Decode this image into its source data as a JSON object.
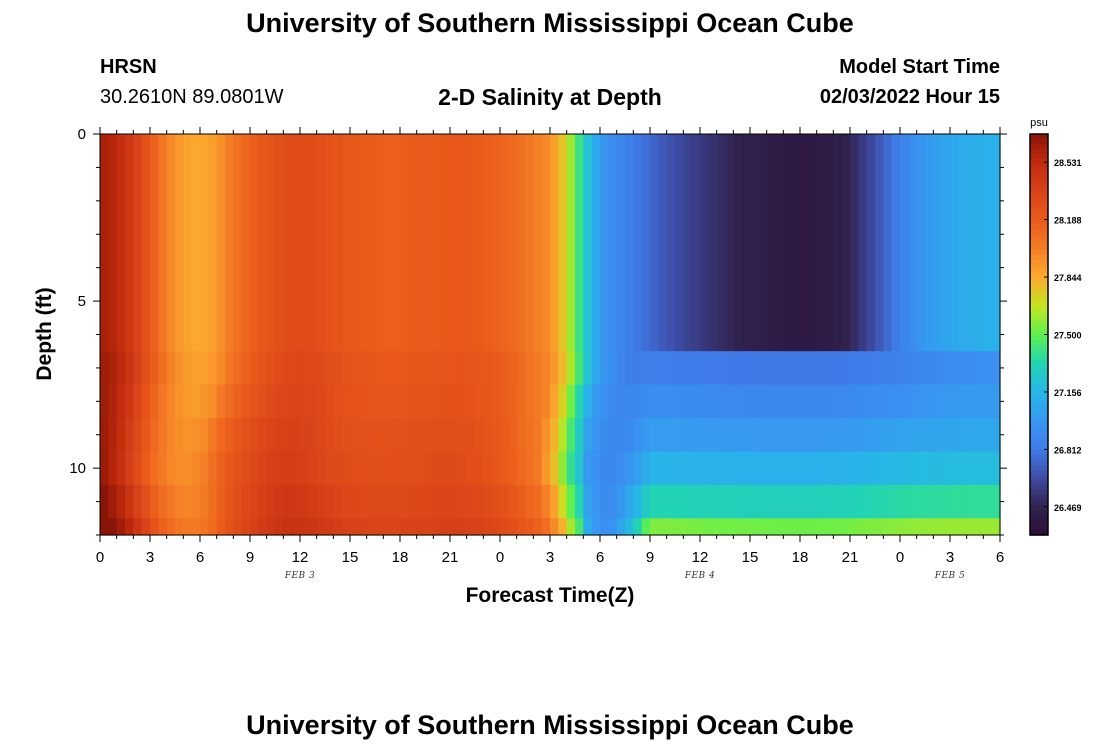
{
  "page": {
    "title": "University of Southern Mississippi Ocean Cube",
    "footer_title": "University of Southern Mississippi Ocean Cube",
    "station": "HRSN",
    "coordinates": "30.2610N  89.0801W",
    "subtitle": "2-D Salinity at Depth",
    "model_start_label": "Model Start Time",
    "model_start_value": "02/03/2022 Hour 15"
  },
  "chart_data": {
    "type": "heatmap",
    "title": "2-D Salinity at Depth",
    "xlabel": "Forecast Time(Z)",
    "ylabel": "Depth (ft)",
    "x_tick_labels": [
      "0",
      "3",
      "6",
      "9",
      "12",
      "15",
      "18",
      "21",
      "0",
      "3",
      "6",
      "9",
      "12",
      "15",
      "18",
      "21",
      "0",
      "3",
      "6"
    ],
    "x_range_hours": [
      0,
      54
    ],
    "date_labels": [
      {
        "label": "FEB 3",
        "hour": 12
      },
      {
        "label": "FEB 4",
        "hour": 36
      },
      {
        "label": "FEB 5",
        "hour": 51
      }
    ],
    "y_ticks": [
      0,
      5,
      10
    ],
    "y_range_ft": [
      0,
      12
    ],
    "depth_layers_ft": [
      [
        0,
        6.5
      ],
      [
        6.5,
        7.5
      ],
      [
        7.5,
        8.5
      ],
      [
        8.5,
        9.5
      ],
      [
        9.5,
        10.5
      ],
      [
        10.5,
        11.5
      ],
      [
        11.5,
        12
      ]
    ],
    "surface_profile_psu": [
      [
        0,
        28.62
      ],
      [
        1,
        28.55
      ],
      [
        2,
        28.4
      ],
      [
        3,
        28.2
      ],
      [
        4,
        28.0
      ],
      [
        5,
        27.88
      ],
      [
        6,
        27.84
      ],
      [
        7,
        27.9
      ],
      [
        8,
        28.05
      ],
      [
        9,
        28.15
      ],
      [
        10,
        28.22
      ],
      [
        11,
        28.28
      ],
      [
        12,
        28.3
      ],
      [
        13,
        28.28
      ],
      [
        14,
        28.24
      ],
      [
        15,
        28.2
      ],
      [
        16,
        28.18
      ],
      [
        17,
        28.17
      ],
      [
        18,
        28.17
      ],
      [
        19,
        28.18
      ],
      [
        20,
        28.18
      ],
      [
        21,
        28.2
      ],
      [
        22,
        28.2
      ],
      [
        23,
        28.18
      ],
      [
        24,
        28.15
      ],
      [
        25,
        28.1
      ],
      [
        26,
        28.02
      ],
      [
        27,
        27.95
      ],
      [
        28,
        27.7
      ],
      [
        28.5,
        27.5
      ],
      [
        29,
        27.3
      ],
      [
        30,
        27.0
      ],
      [
        31,
        26.9
      ],
      [
        32,
        26.82
      ],
      [
        33,
        26.75
      ],
      [
        34,
        26.68
      ],
      [
        35,
        26.62
      ],
      [
        36,
        26.57
      ],
      [
        37,
        26.52
      ],
      [
        38,
        26.48
      ],
      [
        39,
        26.44
      ],
      [
        40,
        26.42
      ],
      [
        41,
        26.4
      ],
      [
        42,
        26.39
      ],
      [
        43,
        26.4
      ],
      [
        44,
        26.42
      ],
      [
        45,
        26.48
      ],
      [
        46,
        26.6
      ],
      [
        47,
        26.72
      ],
      [
        48,
        26.85
      ],
      [
        49,
        26.95
      ],
      [
        50,
        27.02
      ],
      [
        51,
        27.07
      ],
      [
        52,
        27.1
      ],
      [
        53,
        27.12
      ],
      [
        54,
        27.12
      ]
    ],
    "layer_offsets": [
      {
        "top_ft": 0,
        "bottom_ft": 6.5,
        "front_shift_h": 0,
        "tail_psu": null,
        "early_bias": 0
      },
      {
        "top_ft": 6.5,
        "bottom_ft": 7.5,
        "front_shift_h": 0,
        "tail_psu": 26.85,
        "early_bias": 0.03
      },
      {
        "top_ft": 7.5,
        "bottom_ft": 8.5,
        "front_shift_h": -0.3,
        "tail_psu": 26.95,
        "early_bias": 0.05
      },
      {
        "top_ft": 8.5,
        "bottom_ft": 9.5,
        "front_shift_h": -0.6,
        "tail_psu": 27.05,
        "early_bias": 0.08
      },
      {
        "top_ft": 9.5,
        "bottom_ft": 10.5,
        "front_shift_h": -0.8,
        "tail_psu": 27.2,
        "early_bias": 0.1
      },
      {
        "top_ft": 10.5,
        "bottom_ft": 11.5,
        "front_shift_h": -0.6,
        "tail_psu": 27.4,
        "early_bias": 0.14
      },
      {
        "top_ft": 11.5,
        "bottom_ft": 12,
        "front_shift_h": -0.4,
        "tail_psu": 27.65,
        "early_bias": 0.18
      }
    ],
    "colorbar": {
      "unit": "psu",
      "min": 26.3,
      "max": 28.7,
      "tick_values": [
        28.531,
        28.188,
        27.844,
        27.5,
        27.156,
        26.812,
        26.469
      ],
      "tick_labels": [
        "28.531",
        "28.188",
        "27.844",
        "27.500",
        "27.156",
        "26.812",
        "26.469"
      ],
      "colormap": [
        [
          26.3,
          "#2b1038"
        ],
        [
          26.469,
          "#31234f"
        ],
        [
          26.65,
          "#3e4ea8"
        ],
        [
          26.812,
          "#3f7be8"
        ],
        [
          26.95,
          "#3a92f2"
        ],
        [
          27.156,
          "#27b6e8"
        ],
        [
          27.33,
          "#22d4b2"
        ],
        [
          27.5,
          "#5ef04e"
        ],
        [
          27.67,
          "#c6e41f"
        ],
        [
          27.844,
          "#fca92e"
        ],
        [
          28.02,
          "#f47c26"
        ],
        [
          28.188,
          "#ea5a1a"
        ],
        [
          28.36,
          "#d8431a"
        ],
        [
          28.531,
          "#c02b0c"
        ],
        [
          28.7,
          "#8b1408"
        ]
      ]
    }
  }
}
